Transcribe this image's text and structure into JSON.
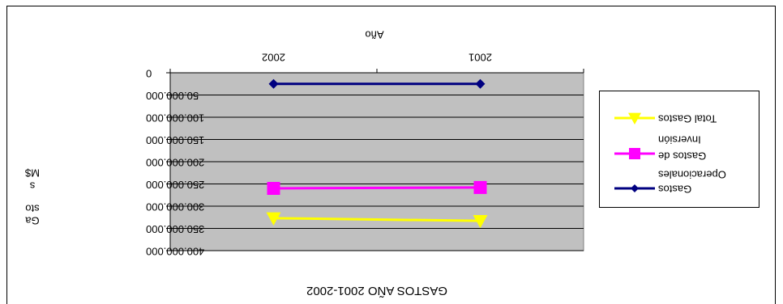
{
  "chart_data": {
    "type": "line",
    "title": "GASTOS AÑO 2001-2002",
    "xlabel": "Año",
    "ylabel_lines": [
      "Ga",
      "sto",
      "s",
      "M$"
    ],
    "categories": [
      "2001",
      "2002"
    ],
    "y_ticks": [
      "0",
      "50.000.000",
      "100.000.000",
      "150.000.000",
      "200.000.000",
      "250.000.000",
      "300.000.000",
      "350.000.000",
      "400.000.000"
    ],
    "ylim": [
      0,
      400000000
    ],
    "y_inverted": true,
    "grid": true,
    "legend_position": "right",
    "series": [
      {
        "name": "Gastos Operacionales",
        "label_lines": [
          "Gastos",
          "Operacionales"
        ],
        "values": [
          25000000,
          25000000
        ],
        "color": "#000080",
        "marker": "diamond"
      },
      {
        "name": "Gastos de Inversión",
        "label_lines": [
          "Gastos de",
          "Inversión"
        ],
        "values": [
          258000000,
          260000000
        ],
        "color": "#FF00FF",
        "marker": "square"
      },
      {
        "name": "Total Gastos",
        "label_lines": [
          "Total Gastos"
        ],
        "values": [
          333000000,
          327000000
        ],
        "color": "#FFFF00",
        "marker": "triangle"
      }
    ],
    "plot_background": "#C0C0C0"
  }
}
